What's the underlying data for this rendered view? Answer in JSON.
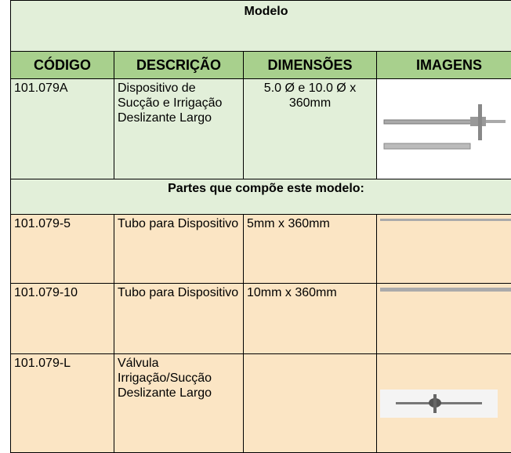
{
  "table": {
    "title": "Modelo",
    "headers": [
      "CÓDIGO",
      "DESCRIÇÃO",
      "DIMENSÕES",
      "IMAGENS"
    ],
    "model": [
      "101.079A",
      "Dispositivo de Sucção e Irrigação Deslizante Largo",
      "5.0 Ø e 10.0 Ø x 360mm"
    ],
    "parts_title": "Partes que compõe este modelo:",
    "rows": [
      [
        "101.079-5",
        "Tubo para Dispositivo",
        "5mm x 360mm"
      ],
      [
        "101.079-10",
        "Tubo para Dispositivo",
        "10mm x 360mm"
      ],
      [
        "101.079-L",
        "Válvula Irrigação/Sucção Deslizante Largo",
        ""
      ]
    ]
  }
}
